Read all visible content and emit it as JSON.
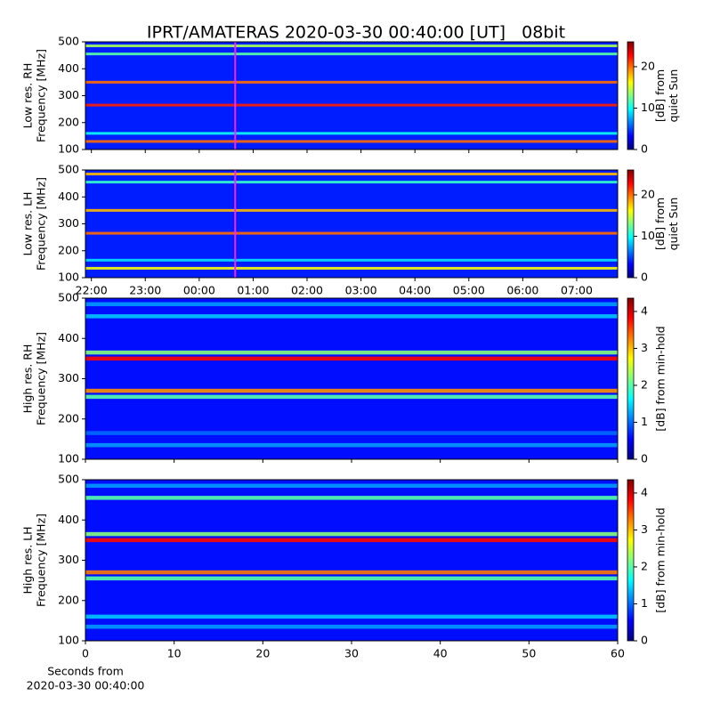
{
  "title": "IPRT/AMATERAS 2020-03-30 00:40:00 [UT]   08bit",
  "chart_data": [
    {
      "type": "spectrogram",
      "ylabel": [
        "Low res. RH",
        "Frequency [MHz]"
      ],
      "xlim": [
        21.89,
        31.76
      ],
      "xticks": [
        {
          "value": 22,
          "label": "22:00"
        },
        {
          "value": 23,
          "label": "23:00"
        },
        {
          "value": 24,
          "label": "00:00"
        },
        {
          "value": 25,
          "label": "01:00"
        },
        {
          "value": 26,
          "label": "02:00"
        },
        {
          "value": 27,
          "label": "03:00"
        },
        {
          "value": 28,
          "label": "04:00"
        },
        {
          "value": 29,
          "label": "05:00"
        },
        {
          "value": 30,
          "label": "06:00"
        },
        {
          "value": 31,
          "label": "07:00"
        }
      ],
      "show_xtick_labels": false,
      "ylim": [
        100,
        500
      ],
      "yticks": [
        100,
        200,
        300,
        400,
        500
      ],
      "marker": {
        "x": 24.667,
        "color": "#ff22ff"
      },
      "baseline": 4,
      "bands": {
        "frequencies": [
          130,
          160,
          265,
          350,
          455,
          485
        ],
        "values": [
          20,
          10,
          22,
          20,
          12,
          14
        ]
      },
      "clim": [
        0,
        26
      ],
      "cticks": [
        0,
        10,
        20
      ],
      "colorbar_label": [
        "[dB] from",
        "quiet Sun"
      ]
    },
    {
      "type": "spectrogram",
      "ylabel": [
        "Low res. LH",
        "Frequency [MHz]"
      ],
      "xlim": [
        21.89,
        31.76
      ],
      "xticks": [
        {
          "value": 22,
          "label": "22:00"
        },
        {
          "value": 23,
          "label": "23:00"
        },
        {
          "value": 24,
          "label": "00:00"
        },
        {
          "value": 25,
          "label": "01:00"
        },
        {
          "value": 26,
          "label": "02:00"
        },
        {
          "value": 27,
          "label": "03:00"
        },
        {
          "value": 28,
          "label": "04:00"
        },
        {
          "value": 29,
          "label": "05:00"
        },
        {
          "value": 30,
          "label": "06:00"
        },
        {
          "value": 31,
          "label": "07:00"
        }
      ],
      "show_xtick_labels": true,
      "ylim": [
        100,
        500
      ],
      "yticks": [
        100,
        200,
        300,
        400,
        500
      ],
      "marker": {
        "x": 24.667,
        "color": "#ff22ff"
      },
      "baseline": 4,
      "bands": {
        "frequencies": [
          135,
          165,
          265,
          350,
          455,
          485
        ],
        "values": [
          16,
          9,
          20,
          18,
          11,
          18
        ]
      },
      "clim": [
        0,
        26
      ],
      "cticks": [
        0,
        10,
        20
      ],
      "colorbar_label": [
        "[dB] from",
        "quiet Sun"
      ]
    },
    {
      "type": "spectrogram",
      "ylabel": [
        "High res. RH",
        "Frequency [MHz]"
      ],
      "xlim": [
        0,
        60
      ],
      "xticks": [
        0,
        10,
        20,
        30,
        40,
        50,
        60
      ],
      "show_xtick_labels": false,
      "ylim": [
        100,
        500
      ],
      "yticks": [
        100,
        200,
        300,
        400,
        500
      ],
      "baseline": 0.6,
      "bands": {
        "frequencies": [
          135,
          165,
          255,
          270,
          350,
          365,
          455,
          485
        ],
        "values": [
          1.2,
          1.0,
          2.0,
          3.2,
          3.8,
          2.2,
          1.4,
          1.2
        ]
      },
      "clim": [
        0,
        4.36
      ],
      "cticks": [
        0,
        1,
        2,
        3,
        4
      ],
      "colorbar_label": [
        "[dB] from min-hold"
      ]
    },
    {
      "type": "spectrogram",
      "ylabel": [
        "High res. LH",
        "Frequency [MHz]"
      ],
      "xlim": [
        0,
        60
      ],
      "xticks": [
        0,
        10,
        20,
        30,
        40,
        50,
        60
      ],
      "show_xtick_labels": true,
      "ylim": [
        100,
        500
      ],
      "yticks": [
        100,
        200,
        300,
        400,
        500
      ],
      "baseline": 0.6,
      "bands": {
        "frequencies": [
          135,
          160,
          255,
          270,
          350,
          365,
          455,
          485
        ],
        "values": [
          1.2,
          1.4,
          2.0,
          3.3,
          3.8,
          2.2,
          2.0,
          1.2
        ]
      },
      "clim": [
        0,
        4.36
      ],
      "cticks": [
        0,
        1,
        2,
        3,
        4
      ],
      "colorbar_label": [
        "[dB] from min-hold"
      ],
      "xlabel": [
        "Seconds from",
        "2020-03-30 00:40:00"
      ]
    }
  ]
}
